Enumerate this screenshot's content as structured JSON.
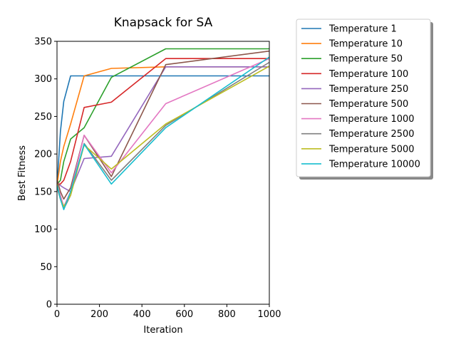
{
  "chart_data": {
    "type": "line",
    "title": "Knapsack for SA",
    "xlabel": "Iteration",
    "ylabel": "Best Fitness",
    "xlim": [
      0,
      1000
    ],
    "ylim": [
      0,
      350
    ],
    "xticks": [
      0,
      200,
      400,
      600,
      800,
      1000
    ],
    "yticks": [
      0,
      50,
      100,
      150,
      200,
      250,
      300,
      350
    ],
    "x": [
      1,
      16,
      32,
      64,
      128,
      256,
      512,
      1000
    ],
    "legend_position": "outside-right",
    "series": [
      {
        "name": "Temperature 1",
        "color": "#1f77b4",
        "values": [
          160,
          230,
          270,
          304,
          304,
          304,
          304,
          304
        ]
      },
      {
        "name": "Temperature 10",
        "color": "#ff7f0e",
        "values": [
          160,
          190,
          210,
          240,
          304,
          314,
          316,
          316
        ]
      },
      {
        "name": "Temperature 50",
        "color": "#2ca02c",
        "values": [
          160,
          165,
          190,
          220,
          235,
          302,
          340,
          340
        ]
      },
      {
        "name": "Temperature 100",
        "color": "#d62728",
        "values": [
          160,
          160,
          165,
          190,
          262,
          269,
          327,
          327
        ]
      },
      {
        "name": "Temperature 250",
        "color": "#9467bd",
        "values": [
          160,
          158,
          155,
          150,
          194,
          197,
          316,
          316
        ]
      },
      {
        "name": "Temperature 500",
        "color": "#8c564b",
        "values": [
          165,
          150,
          140,
          155,
          225,
          170,
          319,
          337
        ]
      },
      {
        "name": "Temperature 1000",
        "color": "#e377c2",
        "values": [
          160,
          145,
          130,
          150,
          225,
          175,
          267,
          327
        ]
      },
      {
        "name": "Temperature 2500",
        "color": "#7f7f7f",
        "values": [
          155,
          140,
          127,
          145,
          214,
          165,
          238,
          322
        ]
      },
      {
        "name": "Temperature 5000",
        "color": "#bcbd22",
        "values": [
          160,
          140,
          130,
          145,
          212,
          180,
          240,
          317
        ]
      },
      {
        "name": "Temperature 10000",
        "color": "#17becf",
        "values": [
          158,
          140,
          126,
          150,
          213,
          160,
          235,
          329
        ]
      }
    ]
  }
}
